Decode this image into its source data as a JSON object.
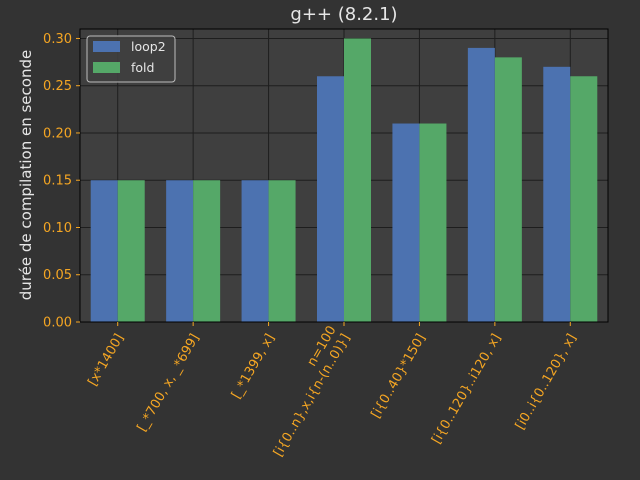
{
  "chart_data": {
    "type": "bar",
    "title": "g++ (8.2.1)",
    "xlabel": "",
    "ylabel": "durée de compilation en seconde",
    "ylim": [
      0,
      0.31
    ],
    "yticks": [
      "0.00",
      "0.05",
      "0.10",
      "0.15",
      "0.20",
      "0.25",
      "0.30"
    ],
    "grid": true,
    "legend_position": "top-left",
    "categories": [
      [
        "[x*1400]"
      ],
      [
        "[_*700, x, _*699]"
      ],
      [
        "[_*1399, x]"
      ],
      [
        "n=100",
        "[i{0..n},x,i{n-(n..0)}]"
      ],
      [
        "[i{0..40}*150]"
      ],
      [
        "[i{0..120}..i120, x]"
      ],
      [
        "[i0..i{0..120}, x]"
      ]
    ],
    "series": [
      {
        "name": "loop2",
        "color": "#4c72b0",
        "values": [
          0.15,
          0.15,
          0.15,
          0.26,
          0.21,
          0.29,
          0.27
        ]
      },
      {
        "name": "fold",
        "color": "#55a868",
        "values": [
          0.15,
          0.15,
          0.15,
          0.3,
          0.21,
          0.28,
          0.26
        ]
      }
    ],
    "colors": {
      "background": "#333333",
      "plot_background": "#3f3f3f",
      "grid": "#1e1e1e",
      "tick": "#f5a623",
      "text": "#e6e6e6"
    }
  }
}
